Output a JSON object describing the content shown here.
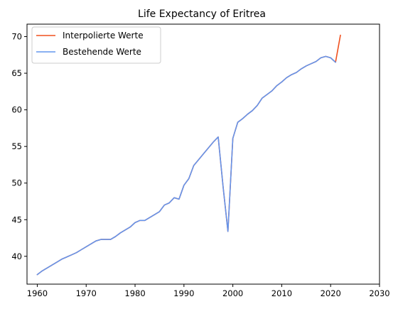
{
  "chart_data": {
    "type": "line",
    "title": "Life Expectancy of Eritrea",
    "xlabel": "",
    "ylabel": "",
    "xlim": [
      1957.9,
      2030
    ],
    "ylim": [
      36.2,
      71.7
    ],
    "xticks": [
      1960,
      1970,
      1980,
      1990,
      2000,
      2010,
      2020,
      2030
    ],
    "yticks": [
      40,
      45,
      50,
      55,
      60,
      65,
      70
    ],
    "grid": false,
    "legend_position": "top-left",
    "series": [
      {
        "name": "Interpolierte Werte",
        "color": "#f0501e",
        "x": [
          1960,
          1961,
          1962,
          1963,
          1964,
          1965,
          1966,
          1967,
          1968,
          1969,
          1970,
          1971,
          1972,
          1973,
          1974,
          1975,
          1976,
          1977,
          1978,
          1979,
          1980,
          1981,
          1982,
          1983,
          1984,
          1985,
          1986,
          1987,
          1988,
          1989,
          1990,
          1991,
          1992,
          1993,
          1994,
          1995,
          1996,
          1997,
          1998,
          1999,
          2000,
          2001,
          2002,
          2003,
          2004,
          2005,
          2006,
          2007,
          2008,
          2009,
          2010,
          2011,
          2012,
          2013,
          2014,
          2015,
          2016,
          2017,
          2018,
          2019,
          2020,
          2021,
          2022
        ],
        "y": [
          37.5,
          38.0,
          38.4,
          38.8,
          39.2,
          39.6,
          39.9,
          40.2,
          40.5,
          40.9,
          41.3,
          41.7,
          42.1,
          42.3,
          42.3,
          42.3,
          42.7,
          43.2,
          43.6,
          44.0,
          44.6,
          44.9,
          44.9,
          45.3,
          45.7,
          46.1,
          47.0,
          47.3,
          48.0,
          47.8,
          49.7,
          50.6,
          52.4,
          53.2,
          54.0,
          54.8,
          55.6,
          56.3,
          49.5,
          43.4,
          56.1,
          58.3,
          58.8,
          59.4,
          59.9,
          60.6,
          61.6,
          62.1,
          62.6,
          63.3,
          63.8,
          64.4,
          64.8,
          65.1,
          65.6,
          66.0,
          66.3,
          66.6,
          67.1,
          67.3,
          67.1,
          66.5,
          70.2
        ]
      },
      {
        "name": "Bestehende Werte",
        "color": "#6495ed",
        "x": [
          1960,
          1961,
          1962,
          1963,
          1964,
          1965,
          1966,
          1967,
          1968,
          1969,
          1970,
          1971,
          1972,
          1973,
          1974,
          1975,
          1976,
          1977,
          1978,
          1979,
          1980,
          1981,
          1982,
          1983,
          1984,
          1985,
          1986,
          1987,
          1988,
          1989,
          1990,
          1991,
          1992,
          1993,
          1994,
          1995,
          1996,
          1997,
          1998,
          1999,
          2000,
          2001,
          2002,
          2003,
          2004,
          2005,
          2006,
          2007,
          2008,
          2009,
          2010,
          2011,
          2012,
          2013,
          2014,
          2015,
          2016,
          2017,
          2018,
          2019,
          2020,
          2021
        ],
        "y": [
          37.5,
          38.0,
          38.4,
          38.8,
          39.2,
          39.6,
          39.9,
          40.2,
          40.5,
          40.9,
          41.3,
          41.7,
          42.1,
          42.3,
          42.3,
          42.3,
          42.7,
          43.2,
          43.6,
          44.0,
          44.6,
          44.9,
          44.9,
          45.3,
          45.7,
          46.1,
          47.0,
          47.3,
          48.0,
          47.8,
          49.7,
          50.6,
          52.4,
          53.2,
          54.0,
          54.8,
          55.6,
          56.3,
          49.5,
          43.4,
          56.1,
          58.3,
          58.8,
          59.4,
          59.9,
          60.6,
          61.6,
          62.1,
          62.6,
          63.3,
          63.8,
          64.4,
          64.8,
          65.1,
          65.6,
          66.0,
          66.3,
          66.6,
          67.1,
          67.3,
          67.1,
          66.5
        ]
      }
    ]
  }
}
